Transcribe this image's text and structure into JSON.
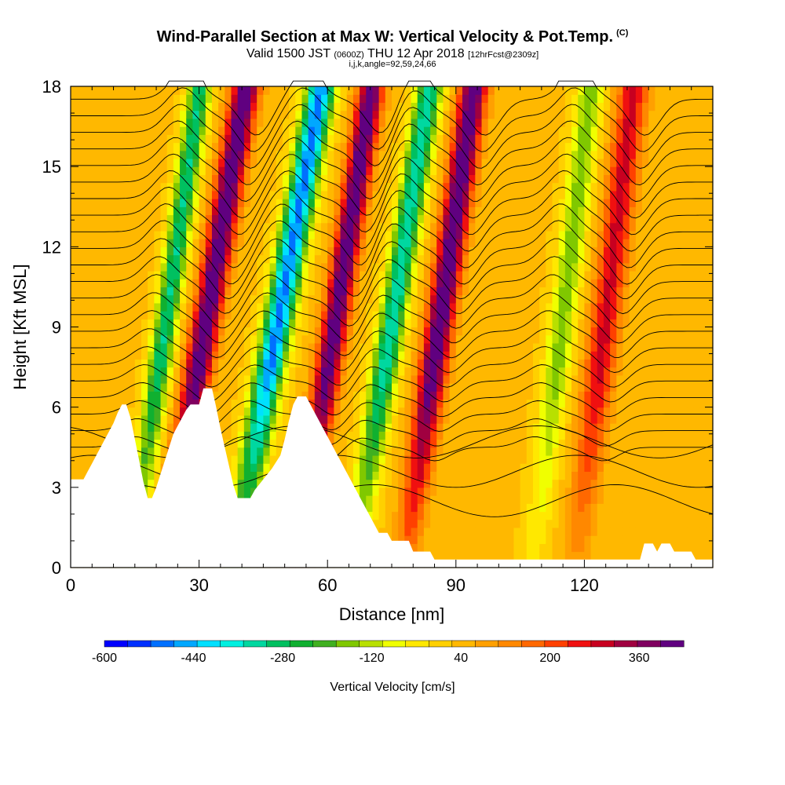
{
  "title": "Wind-Parallel Section at Max W: Vertical Velocity & Pot.Temp.",
  "title_mark": "(C)",
  "subtitle_main": "Valid 1500 JST",
  "subtitle_z": "(0600Z)",
  "subtitle_date": "THU 12 Apr 2018",
  "subtitle_fcst": "[12hrFcst@2309z]",
  "subtitle2": "i,j,k,angle=92,59,24,66",
  "chart_data": {
    "type": "heatmap",
    "xlabel": "Distance [nm]",
    "ylabel": "Height [Kft MSL]",
    "xlim": [
      0,
      150
    ],
    "ylim": [
      0,
      18
    ],
    "x_ticks": [
      "0",
      "30",
      "60",
      "90",
      "120"
    ],
    "x_tick_values": [
      0,
      30,
      60,
      90,
      120
    ],
    "y_ticks": [
      "0",
      "3",
      "6",
      "9",
      "12",
      "15",
      "18"
    ],
    "y_tick_values": [
      0,
      3,
      6,
      9,
      12,
      15,
      18
    ],
    "colorbar": {
      "label": "Vertical Velocity [cm/s]",
      "tick_labels": [
        "-600",
        "-440",
        "-280",
        "-120",
        "40",
        "200",
        "360"
      ],
      "tick_values": [
        -600,
        -440,
        -280,
        -120,
        40,
        200,
        360
      ],
      "range": [
        -600,
        440
      ],
      "colors": [
        "#0000ff",
        "#0030ff",
        "#0070ff",
        "#00a8ff",
        "#00e0ff",
        "#00f0e0",
        "#00d8a0",
        "#00c060",
        "#10b030",
        "#40b020",
        "#80c800",
        "#b8e000",
        "#f0ff00",
        "#ffe800",
        "#ffd000",
        "#ffb800",
        "#ffa000",
        "#ff8800",
        "#ff6800",
        "#ff4000",
        "#f01010",
        "#c80020",
        "#a00040",
        "#800060",
        "#600080"
      ]
    },
    "terrain_kft": [
      [
        0,
        3.3
      ],
      [
        3,
        3.3
      ],
      [
        4,
        3.6
      ],
      [
        5,
        3.9
      ],
      [
        6,
        4.2
      ],
      [
        7,
        4.5
      ],
      [
        8,
        4.8
      ],
      [
        9,
        5.1
      ],
      [
        10,
        5.4
      ],
      [
        11,
        5.8
      ],
      [
        12,
        6.1
      ],
      [
        13,
        6.1
      ],
      [
        14,
        5.6
      ],
      [
        15,
        4.8
      ],
      [
        16,
        4.0
      ],
      [
        17,
        3.2
      ],
      [
        18,
        2.6
      ],
      [
        19,
        2.6
      ],
      [
        20,
        3.0
      ],
      [
        21,
        3.5
      ],
      [
        22,
        4.0
      ],
      [
        23,
        4.5
      ],
      [
        24,
        5.0
      ],
      [
        25,
        5.3
      ],
      [
        26,
        5.6
      ],
      [
        27,
        5.9
      ],
      [
        28,
        6.1
      ],
      [
        30,
        6.1
      ],
      [
        31,
        6.7
      ],
      [
        33,
        6.7
      ],
      [
        34,
        6.0
      ],
      [
        35,
        5.2
      ],
      [
        36,
        4.5
      ],
      [
        37,
        3.8
      ],
      [
        38,
        3.1
      ],
      [
        39,
        2.6
      ],
      [
        42,
        2.6
      ],
      [
        43,
        2.9
      ],
      [
        45,
        3.3
      ],
      [
        47,
        3.7
      ],
      [
        49,
        4.2
      ],
      [
        50,
        4.8
      ],
      [
        51,
        5.5
      ],
      [
        52,
        6.1
      ],
      [
        53,
        6.4
      ],
      [
        55,
        6.4
      ],
      [
        56,
        6.1
      ],
      [
        57,
        5.8
      ],
      [
        58,
        5.5
      ],
      [
        59,
        5.2
      ],
      [
        60,
        4.9
      ],
      [
        61,
        4.6
      ],
      [
        62,
        4.3
      ],
      [
        63,
        4.0
      ],
      [
        64,
        3.7
      ],
      [
        65,
        3.4
      ],
      [
        66,
        3.1
      ],
      [
        67,
        2.8
      ],
      [
        68,
        2.5
      ],
      [
        69,
        2.2
      ],
      [
        70,
        1.9
      ],
      [
        71,
        1.6
      ],
      [
        72,
        1.3
      ],
      [
        74,
        1.3
      ],
      [
        75,
        1.0
      ],
      [
        79,
        1.0
      ],
      [
        80,
        0.6
      ],
      [
        84,
        0.6
      ],
      [
        85,
        0.3
      ],
      [
        133,
        0.3
      ],
      [
        134,
        0.9
      ],
      [
        136,
        0.9
      ],
      [
        137,
        0.6
      ],
      [
        138,
        0.9
      ],
      [
        140,
        0.9
      ],
      [
        141,
        0.6
      ],
      [
        145,
        0.6
      ],
      [
        146,
        0.3
      ],
      [
        150,
        0.3
      ]
    ],
    "updrafts": [
      {
        "x0": 22,
        "slope": 0.35,
        "width": 3.2,
        "peak": 430,
        "top": 18
      },
      {
        "x0": 53,
        "slope": 0.32,
        "width": 3.0,
        "peak": 420,
        "top": 18
      },
      {
        "x0": 78,
        "slope": 0.3,
        "width": 3.2,
        "peak": 430,
        "top": 18
      },
      {
        "x0": 118,
        "slope": 0.25,
        "width": 3.5,
        "peak": 260,
        "top": 18
      }
    ],
    "downdrafts": [
      {
        "x0": 14,
        "slope": 0.3,
        "width": 2.6,
        "peak": -340,
        "top": 18
      },
      {
        "x0": 38,
        "slope": 0.38,
        "width": 3.3,
        "peak": -520,
        "top": 18
      },
      {
        "x0": 66,
        "slope": 0.33,
        "width": 3.0,
        "peak": -380,
        "top": 18
      },
      {
        "x0": 108,
        "slope": 0.25,
        "width": 3.0,
        "peak": -200,
        "top": 18
      }
    ]
  }
}
